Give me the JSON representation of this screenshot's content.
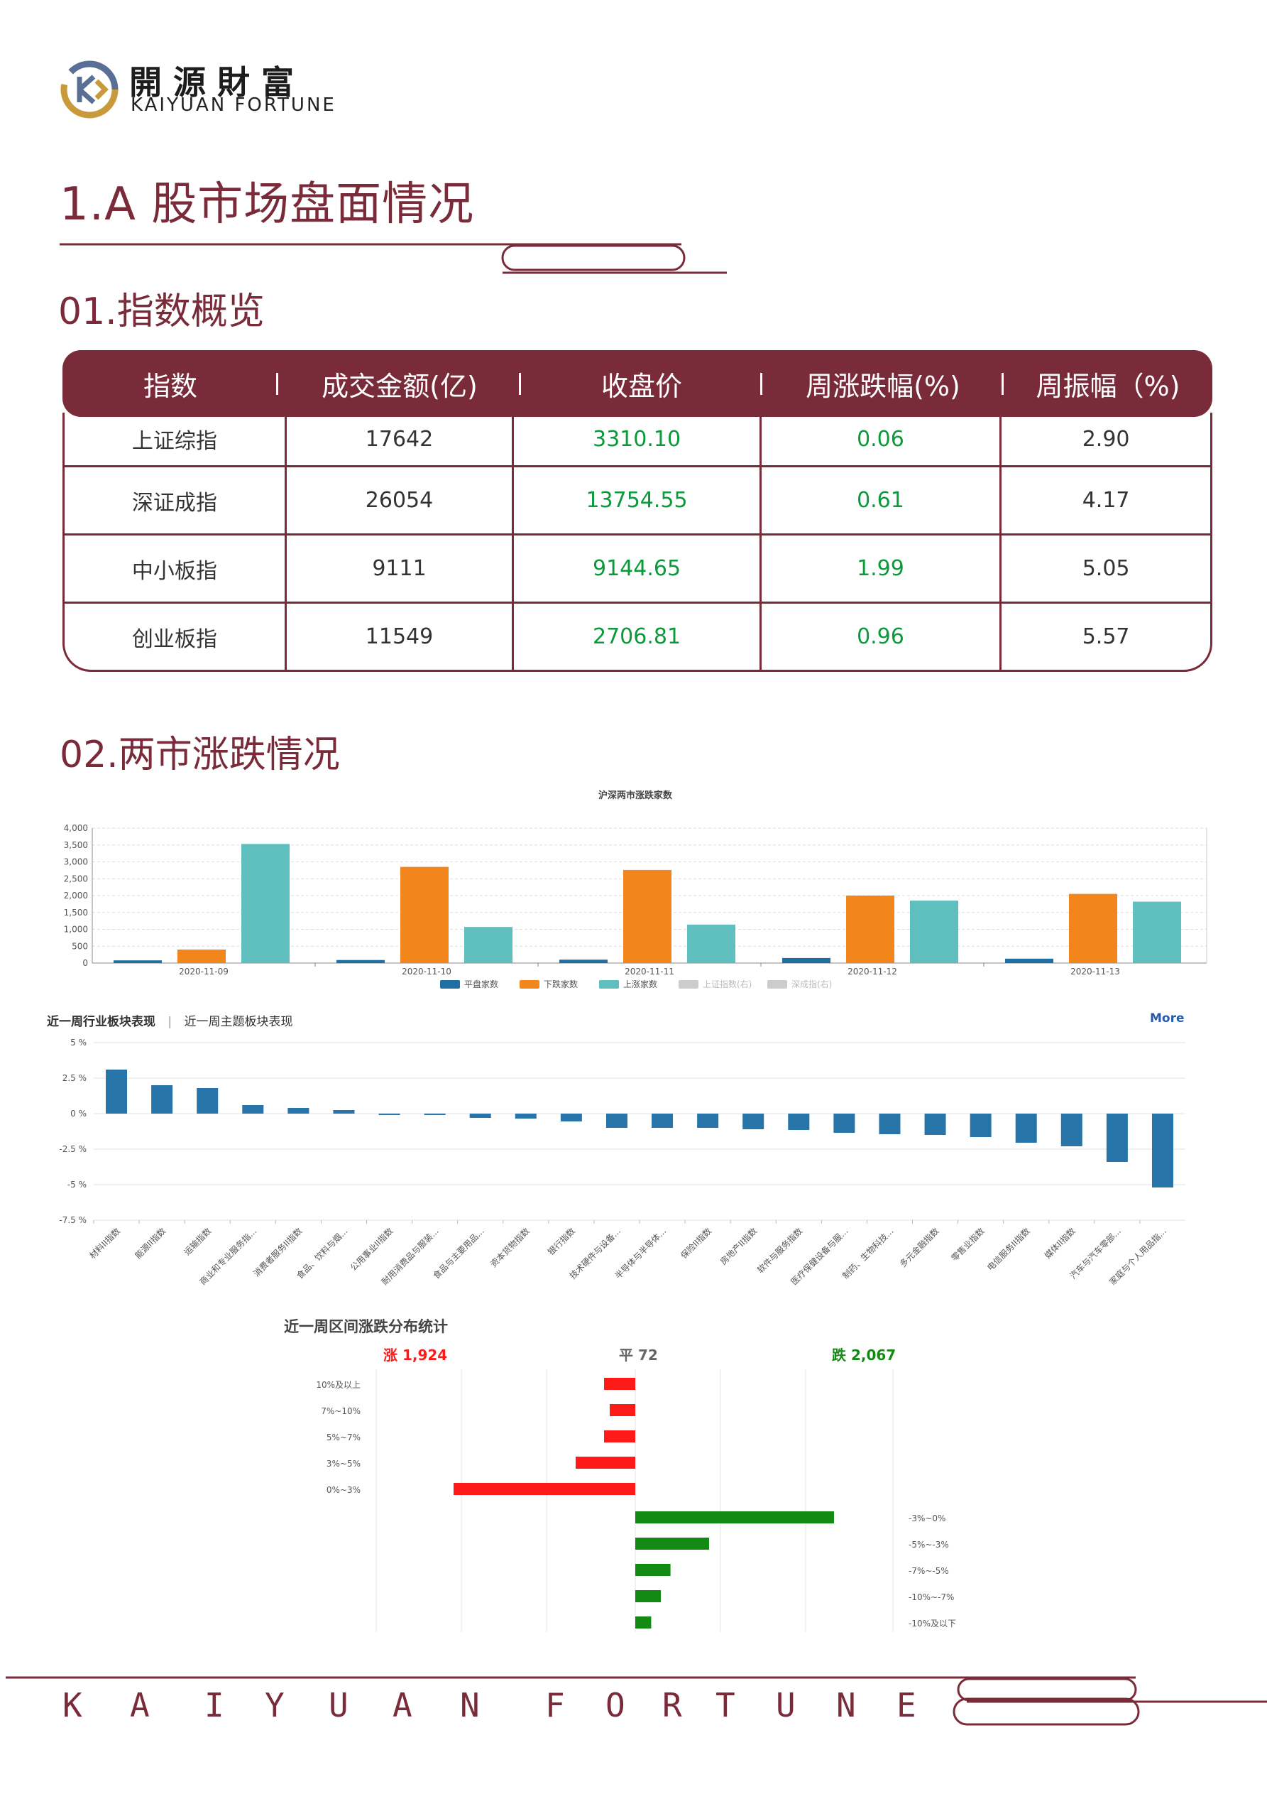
{
  "brand": {
    "name_cn": "開源財富",
    "name_en": "KAIYUAN FORTUNE"
  },
  "headings": {
    "h1": "1.A 股市场盘面情况",
    "s01": "01.指数概览",
    "s02": "02.两市涨跌情况"
  },
  "colors": {
    "brand": "#7a2b39",
    "green": "#0b9a3a",
    "flat": "#1f6fa3",
    "down": "#f2861d",
    "up": "#5fbfbf",
    "sector": "#2775a8",
    "rise": "#ff1a1a",
    "fall": "#138a13"
  },
  "table": {
    "headers": [
      "指数",
      "成交金额(亿)",
      "收盘价",
      "周涨跌幅(%)",
      "周振幅（%)"
    ],
    "rows": [
      [
        "上证综指",
        "17642",
        "3310.10",
        "0.06",
        "2.90"
      ],
      [
        "深证成指",
        "26054",
        "13754.55",
        "0.61",
        "4.17"
      ],
      [
        "中小板指",
        "9111",
        "9144.65",
        "1.99",
        "5.05"
      ],
      [
        "创业板指",
        "11549",
        "2706.81",
        "0.96",
        "5.57"
      ]
    ]
  },
  "chart_data": [
    {
      "type": "bar",
      "title": "沪深两市涨跌家数",
      "categories": [
        "2020-11-09",
        "2020-11-10",
        "2020-11-11",
        "2020-11-12",
        "2020-11-13"
      ],
      "series": [
        {
          "name": "平盘家数",
          "values": [
            80,
            90,
            100,
            150,
            130
          ]
        },
        {
          "name": "下跌家数",
          "values": [
            400,
            2850,
            2760,
            2000,
            2050
          ]
        },
        {
          "name": "上涨家数",
          "values": [
            3530,
            1070,
            1140,
            1850,
            1820
          ]
        }
      ],
      "legend_extra": [
        "上证指数(右)",
        "深成指(右)"
      ],
      "yticks": [
        "4,000",
        "3,500",
        "3,000",
        "2,500",
        "2,000",
        "1,500",
        "1,000",
        "500",
        "0"
      ],
      "ylim": [
        0,
        4000
      ],
      "grid": true,
      "legend": "bottom"
    },
    {
      "type": "bar",
      "tabs": [
        "近一周行业板块表现",
        "近一周主题板块表现"
      ],
      "more": "More",
      "yticks": [
        "5 %",
        "2.5 %",
        "0 %",
        "-2.5 %",
        "-5 %",
        "-7.5 %"
      ],
      "ylim": [
        -7.5,
        5
      ],
      "categories": [
        "材料II指数",
        "能源II指数",
        "运输指数",
        "商业和专业服务指...",
        "消费者服务II指数",
        "食品、饮料与烟...",
        "公用事业II指数",
        "耐用消费品与服装...",
        "食品与主要用品...",
        "资本货物指数",
        "银行指数",
        "技术硬件与设备...",
        "半导体与半导体...",
        "保险II指数",
        "房地产II指数",
        "软件与服务指数",
        "医疗保健设备与服...",
        "制药、生物科技...",
        "多元金融指数",
        "零售业指数",
        "电信服务II指数",
        "媒体II指数",
        "汽车与汽车零部...",
        "家庭与个人用品指..."
      ],
      "values": [
        3.1,
        2.0,
        1.8,
        0.6,
        0.4,
        0.25,
        -0.1,
        -0.1,
        -0.3,
        -0.35,
        -0.55,
        -1.0,
        -1.0,
        -1.0,
        -1.1,
        -1.15,
        -1.35,
        -1.45,
        -1.5,
        -1.65,
        -2.05,
        -2.3,
        -3.4,
        -5.2
      ],
      "grid": true
    },
    {
      "type": "bar",
      "title": "近一周区间涨跌分布统计",
      "summary": {
        "up": "涨 1,924",
        "flat": "平 72",
        "down": "跌 2,067"
      },
      "up_categories": [
        "10%及以上",
        "7%~10%",
        "5%~7%",
        "3%~5%",
        "0%~3%"
      ],
      "up_values": [
        55,
        45,
        55,
        105,
        320
      ],
      "down_categories": [
        "-3%~0%",
        "-5%~-3%",
        "-7%~-5%",
        "-10%~-7%",
        "-10%及以下"
      ],
      "down_values": [
        350,
        130,
        62,
        45,
        28
      ]
    }
  ],
  "footer": {
    "letters": [
      "K",
      "A",
      "I",
      "Y",
      "U",
      "A",
      "N",
      "F",
      "O",
      "R",
      "T",
      "U",
      "N",
      "E"
    ]
  }
}
